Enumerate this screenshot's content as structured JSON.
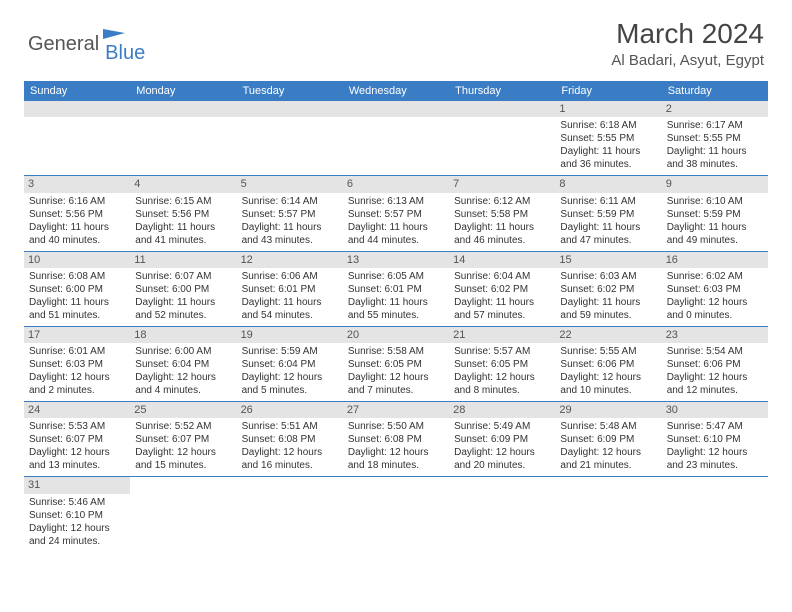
{
  "logo": {
    "text1": "General",
    "text2": "Blue",
    "icon_color": "#3b7dc4"
  },
  "title": "March 2024",
  "location": "Al Badari, Asyut, Egypt",
  "colors": {
    "header_bg": "#3b7dc4",
    "header_fg": "#ffffff",
    "daynum_bg": "#e4e4e4",
    "border": "#3b7dc4"
  },
  "weekdays": [
    "Sunday",
    "Monday",
    "Tuesday",
    "Wednesday",
    "Thursday",
    "Friday",
    "Saturday"
  ],
  "weeks": [
    [
      null,
      null,
      null,
      null,
      null,
      {
        "n": "1",
        "rise": "6:18 AM",
        "set": "5:55 PM",
        "dayh": "11",
        "daym": "36"
      },
      {
        "n": "2",
        "rise": "6:17 AM",
        "set": "5:55 PM",
        "dayh": "11",
        "daym": "38"
      }
    ],
    [
      {
        "n": "3",
        "rise": "6:16 AM",
        "set": "5:56 PM",
        "dayh": "11",
        "daym": "40"
      },
      {
        "n": "4",
        "rise": "6:15 AM",
        "set": "5:56 PM",
        "dayh": "11",
        "daym": "41"
      },
      {
        "n": "5",
        "rise": "6:14 AM",
        "set": "5:57 PM",
        "dayh": "11",
        "daym": "43"
      },
      {
        "n": "6",
        "rise": "6:13 AM",
        "set": "5:57 PM",
        "dayh": "11",
        "daym": "44"
      },
      {
        "n": "7",
        "rise": "6:12 AM",
        "set": "5:58 PM",
        "dayh": "11",
        "daym": "46"
      },
      {
        "n": "8",
        "rise": "6:11 AM",
        "set": "5:59 PM",
        "dayh": "11",
        "daym": "47"
      },
      {
        "n": "9",
        "rise": "6:10 AM",
        "set": "5:59 PM",
        "dayh": "11",
        "daym": "49"
      }
    ],
    [
      {
        "n": "10",
        "rise": "6:08 AM",
        "set": "6:00 PM",
        "dayh": "11",
        "daym": "51"
      },
      {
        "n": "11",
        "rise": "6:07 AM",
        "set": "6:00 PM",
        "dayh": "11",
        "daym": "52"
      },
      {
        "n": "12",
        "rise": "6:06 AM",
        "set": "6:01 PM",
        "dayh": "11",
        "daym": "54"
      },
      {
        "n": "13",
        "rise": "6:05 AM",
        "set": "6:01 PM",
        "dayh": "11",
        "daym": "55"
      },
      {
        "n": "14",
        "rise": "6:04 AM",
        "set": "6:02 PM",
        "dayh": "11",
        "daym": "57"
      },
      {
        "n": "15",
        "rise": "6:03 AM",
        "set": "6:02 PM",
        "dayh": "11",
        "daym": "59"
      },
      {
        "n": "16",
        "rise": "6:02 AM",
        "set": "6:03 PM",
        "dayh": "12",
        "daym": "0"
      }
    ],
    [
      {
        "n": "17",
        "rise": "6:01 AM",
        "set": "6:03 PM",
        "dayh": "12",
        "daym": "2"
      },
      {
        "n": "18",
        "rise": "6:00 AM",
        "set": "6:04 PM",
        "dayh": "12",
        "daym": "4"
      },
      {
        "n": "19",
        "rise": "5:59 AM",
        "set": "6:04 PM",
        "dayh": "12",
        "daym": "5"
      },
      {
        "n": "20",
        "rise": "5:58 AM",
        "set": "6:05 PM",
        "dayh": "12",
        "daym": "7"
      },
      {
        "n": "21",
        "rise": "5:57 AM",
        "set": "6:05 PM",
        "dayh": "12",
        "daym": "8"
      },
      {
        "n": "22",
        "rise": "5:55 AM",
        "set": "6:06 PM",
        "dayh": "12",
        "daym": "10"
      },
      {
        "n": "23",
        "rise": "5:54 AM",
        "set": "6:06 PM",
        "dayh": "12",
        "daym": "12"
      }
    ],
    [
      {
        "n": "24",
        "rise": "5:53 AM",
        "set": "6:07 PM",
        "dayh": "12",
        "daym": "13"
      },
      {
        "n": "25",
        "rise": "5:52 AM",
        "set": "6:07 PM",
        "dayh": "12",
        "daym": "15"
      },
      {
        "n": "26",
        "rise": "5:51 AM",
        "set": "6:08 PM",
        "dayh": "12",
        "daym": "16"
      },
      {
        "n": "27",
        "rise": "5:50 AM",
        "set": "6:08 PM",
        "dayh": "12",
        "daym": "18"
      },
      {
        "n": "28",
        "rise": "5:49 AM",
        "set": "6:09 PM",
        "dayh": "12",
        "daym": "20"
      },
      {
        "n": "29",
        "rise": "5:48 AM",
        "set": "6:09 PM",
        "dayh": "12",
        "daym": "21"
      },
      {
        "n": "30",
        "rise": "5:47 AM",
        "set": "6:10 PM",
        "dayh": "12",
        "daym": "23"
      }
    ],
    [
      {
        "n": "31",
        "rise": "5:46 AM",
        "set": "6:10 PM",
        "dayh": "12",
        "daym": "24"
      },
      null,
      null,
      null,
      null,
      null,
      null
    ]
  ],
  "labels": {
    "sunrise": "Sunrise:",
    "sunset": "Sunset:",
    "daylight": "Daylight:",
    "hours": "hours",
    "and": "and",
    "minutes": "minutes."
  }
}
